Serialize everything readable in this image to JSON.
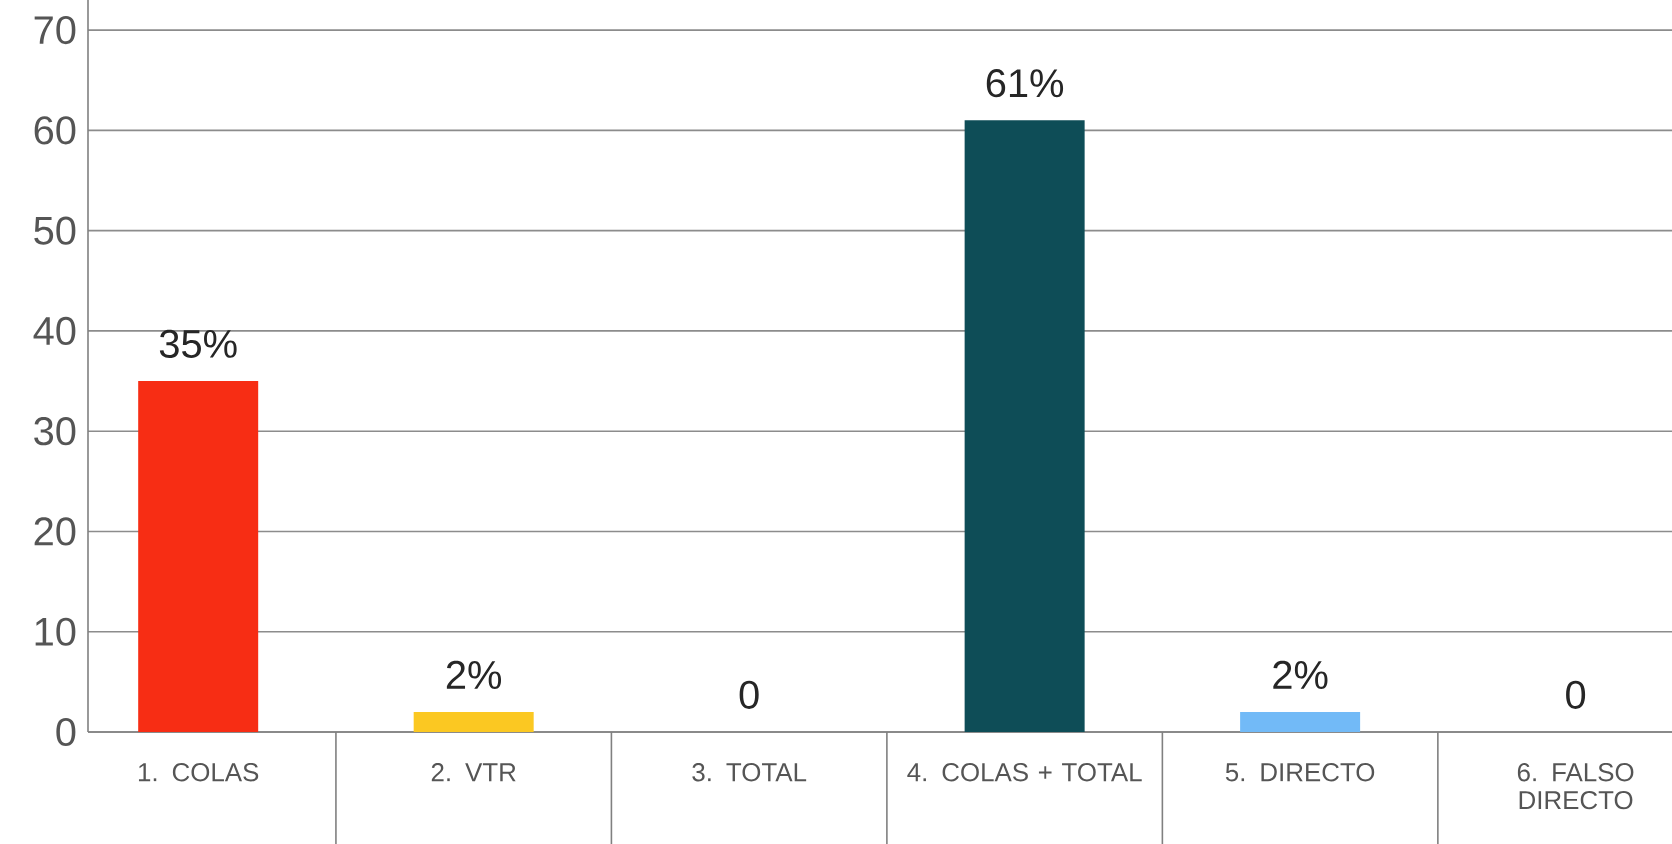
{
  "chart_data": {
    "type": "bar",
    "categories": [
      "1. COLAS",
      "2. VTR",
      "3. TOTAL",
      "4. COLAS + TOTAL",
      "5. DIRECTO",
      "6. FALSO DIRECTO"
    ],
    "values": [
      35,
      2,
      0,
      61,
      2,
      0
    ],
    "colors": [
      "#f72d14",
      "#fbc822",
      "#bbbbbb",
      "#0e4d57",
      "#72baf7",
      "#bbbbbb"
    ],
    "value_labels": [
      "35%",
      "2%",
      "0",
      "61%",
      "2%",
      "0"
    ],
    "ylim": [
      0,
      73
    ],
    "yticks": [
      0,
      10,
      20,
      30,
      40,
      50,
      60,
      70
    ],
    "grid": "y"
  }
}
